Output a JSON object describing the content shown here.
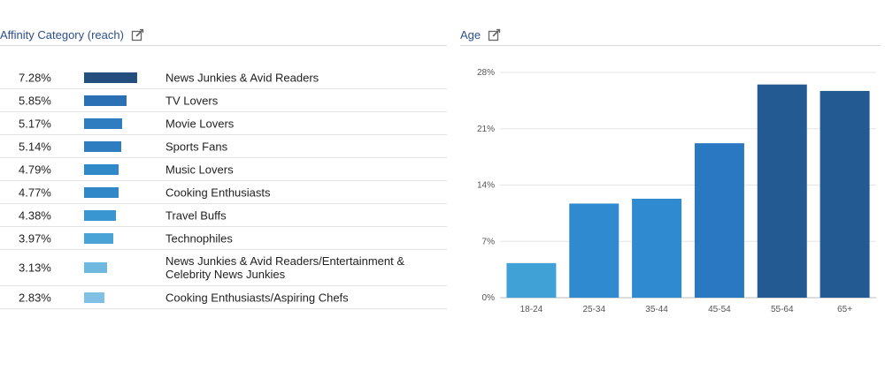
{
  "affinity": {
    "title": "Affinity Category (reach)",
    "rows": [
      {
        "pct": "7.28%",
        "value": 7.28,
        "label": "News Junkies & Avid Readers",
        "color": "#234e7f"
      },
      {
        "pct": "5.85%",
        "value": 5.85,
        "label": "TV Lovers",
        "color": "#2b6fb5"
      },
      {
        "pct": "5.17%",
        "value": 5.17,
        "label": "Movie Lovers",
        "color": "#2f7dc1"
      },
      {
        "pct": "5.14%",
        "value": 5.14,
        "label": "Sports Fans",
        "color": "#2f7dc1"
      },
      {
        "pct": "4.79%",
        "value": 4.79,
        "label": "Music Lovers",
        "color": "#3088c9"
      },
      {
        "pct": "4.77%",
        "value": 4.77,
        "label": "Cooking Enthusiasts",
        "color": "#3088c9"
      },
      {
        "pct": "4.38%",
        "value": 4.38,
        "label": "Travel Buffs",
        "color": "#3a96d1"
      },
      {
        "pct": "3.97%",
        "value": 3.97,
        "label": "Technophiles",
        "color": "#4aa3d7"
      },
      {
        "pct": "3.13%",
        "value": 3.13,
        "label": "News Junkies & Avid Readers/Entertainment & Celebrity News Junkies",
        "color": "#6fb8e0"
      },
      {
        "pct": "2.83%",
        "value": 2.83,
        "label": "Cooking Enthusiasts/Aspiring Chefs",
        "color": "#7fc0e4"
      }
    ]
  },
  "age": {
    "title": "Age"
  },
  "chart_data": [
    {
      "type": "bar",
      "orientation": "horizontal",
      "title": "Affinity Category (reach)",
      "categories": [
        "News Junkies & Avid Readers",
        "TV Lovers",
        "Movie Lovers",
        "Sports Fans",
        "Music Lovers",
        "Cooking Enthusiasts",
        "Travel Buffs",
        "Technophiles",
        "News Junkies & Avid Readers/Entertainment & Celebrity News Junkies",
        "Cooking Enthusiasts/Aspiring Chefs"
      ],
      "values": [
        7.28,
        5.85,
        5.17,
        5.14,
        4.79,
        4.77,
        4.38,
        3.97,
        3.13,
        2.83
      ],
      "unit": "%"
    },
    {
      "type": "bar",
      "title": "Age",
      "categories": [
        "18-24",
        "25-34",
        "35-44",
        "45-54",
        "55-64",
        "65+"
      ],
      "values": [
        4.3,
        11.7,
        12.3,
        19.2,
        26.5,
        25.7
      ],
      "colors": [
        "#3fa1d6",
        "#2f8ad0",
        "#2f8ad0",
        "#2b78c2",
        "#235a91",
        "#235a91"
      ],
      "yticks": [
        "0%",
        "7%",
        "14%",
        "21%",
        "28%"
      ],
      "ylim": [
        0,
        28
      ],
      "grid": true
    }
  ]
}
